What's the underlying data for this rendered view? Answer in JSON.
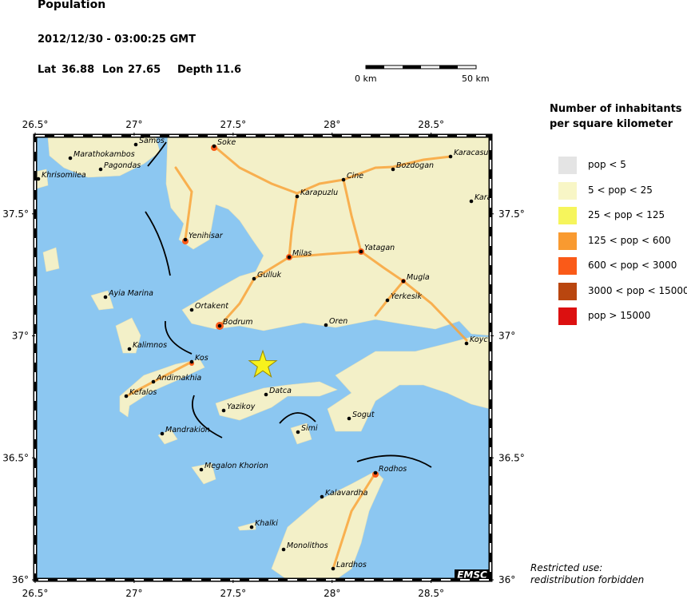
{
  "header": {
    "title": "Population",
    "datetime": "2012/12/30 - 03:00:25 GMT",
    "lat_label": "Lat",
    "lat": 36.88,
    "lon_label": "Lon",
    "lon": 27.65,
    "depth_label": "Depth",
    "depth": 11.6
  },
  "scale_bar": {
    "start": "0 km",
    "end": "50 km"
  },
  "map": {
    "lonlim": [
      26.5,
      28.8
    ],
    "latlim": [
      36,
      37.82
    ],
    "lon_ticks": [
      {
        "value": 26.5,
        "label": "26.5°"
      },
      {
        "value": 27,
        "label": "27°"
      },
      {
        "value": 27.5,
        "label": "27.5°"
      },
      {
        "value": 28,
        "label": "28°"
      },
      {
        "value": 28.5,
        "label": "28.5°"
      }
    ],
    "lat_ticks": [
      {
        "value": 36,
        "label": "36°"
      },
      {
        "value": 36.5,
        "label": "36.5°"
      },
      {
        "value": 37,
        "label": "37°"
      },
      {
        "value": 37.5,
        "label": "37.5°"
      }
    ],
    "badge": "EMSC",
    "cities": [
      "Samos",
      "Marathokambos",
      "Pagondas",
      "Khrisomilea",
      "Soke",
      "Cine",
      "Bozdogan",
      "Karacasu",
      "Karapuzlu",
      "Kara",
      "Yenihisar",
      "Milas",
      "Yatagan",
      "Gulluk",
      "Mugla",
      "Ayia Marina",
      "Ortakent",
      "Yerkesik",
      "Bodrum",
      "Oren",
      "Kalimnos",
      "Koyc",
      "Kos",
      "Andimakhia",
      "Datca",
      "Kefalos",
      "Yazikoy",
      "Sogut",
      "Simi",
      "Mandrakion",
      "Megalon Khorion",
      "Rodhos",
      "Kalavardha",
      "Khalki",
      "Monolithos",
      "Lardhos"
    ]
  },
  "legend": {
    "title": "Number of inhabitants",
    "subtitle": "per square kilometer",
    "items": [
      {
        "label": "pop < 5",
        "color": "#e4e4e4"
      },
      {
        "label": "5 < pop < 25",
        "color": "#f8f6c6"
      },
      {
        "label": "25 < pop < 125",
        "color": "#f6f55c"
      },
      {
        "label": "125 < pop < 600",
        "color": "#f99a30"
      },
      {
        "label": "600 < pop < 3000",
        "color": "#fa5a18"
      },
      {
        "label": "3000 < pop < 15000",
        "color": "#b9460f"
      },
      {
        "label": "pop > 15000",
        "color": "#dc1010"
      }
    ]
  },
  "notice": [
    "Restricted use:",
    "redistribution forbidden"
  ]
}
